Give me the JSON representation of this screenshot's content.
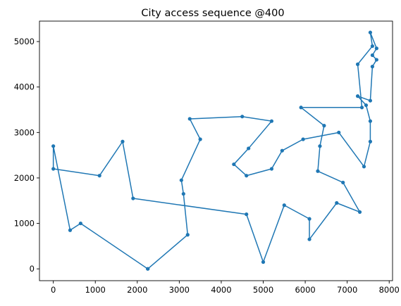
{
  "chart_data": {
    "type": "line",
    "title": "City access sequence @400",
    "xlabel": "",
    "ylabel": "",
    "xlim": [
      -330,
      8080
    ],
    "ylim": [
      -260,
      5450
    ],
    "xticks": [
      0,
      1000,
      2000,
      3000,
      4000,
      5000,
      6000,
      7000,
      8000
    ],
    "yticks": [
      0,
      1000,
      2000,
      3000,
      4000,
      5000
    ],
    "grid": false,
    "legend": "none",
    "color": "#1f77b4",
    "markers": true,
    "series": [
      {
        "x": [
          2250,
          3200,
          3100,
          3050,
          3500,
          3250,
          4500,
          5200,
          4650,
          4300,
          4600,
          5200,
          5450,
          5950,
          6800,
          7400,
          7550,
          7550,
          7450,
          7250,
          7550,
          7600,
          7700,
          7600,
          7700,
          7550,
          7600,
          7250,
          7350,
          5900,
          6450,
          6350,
          6300,
          6900,
          7300,
          6750,
          6100,
          6100,
          5500,
          5000,
          4600,
          1900,
          1650,
          1100,
          0,
          0,
          400,
          650,
          2250
        ],
        "y": [
          0,
          750,
          1650,
          1950,
          2850,
          3300,
          3350,
          3250,
          2650,
          2300,
          2050,
          2200,
          2600,
          2850,
          3000,
          2250,
          2800,
          3250,
          3600,
          3800,
          3700,
          4450,
          4600,
          4700,
          4850,
          5200,
          4900,
          4500,
          3550,
          3550,
          3150,
          2700,
          2150,
          1900,
          1250,
          1450,
          650,
          1100,
          1400,
          150,
          1200,
          1550,
          2800,
          2050,
          2200,
          2700,
          850,
          1000,
          0
        ]
      }
    ]
  }
}
